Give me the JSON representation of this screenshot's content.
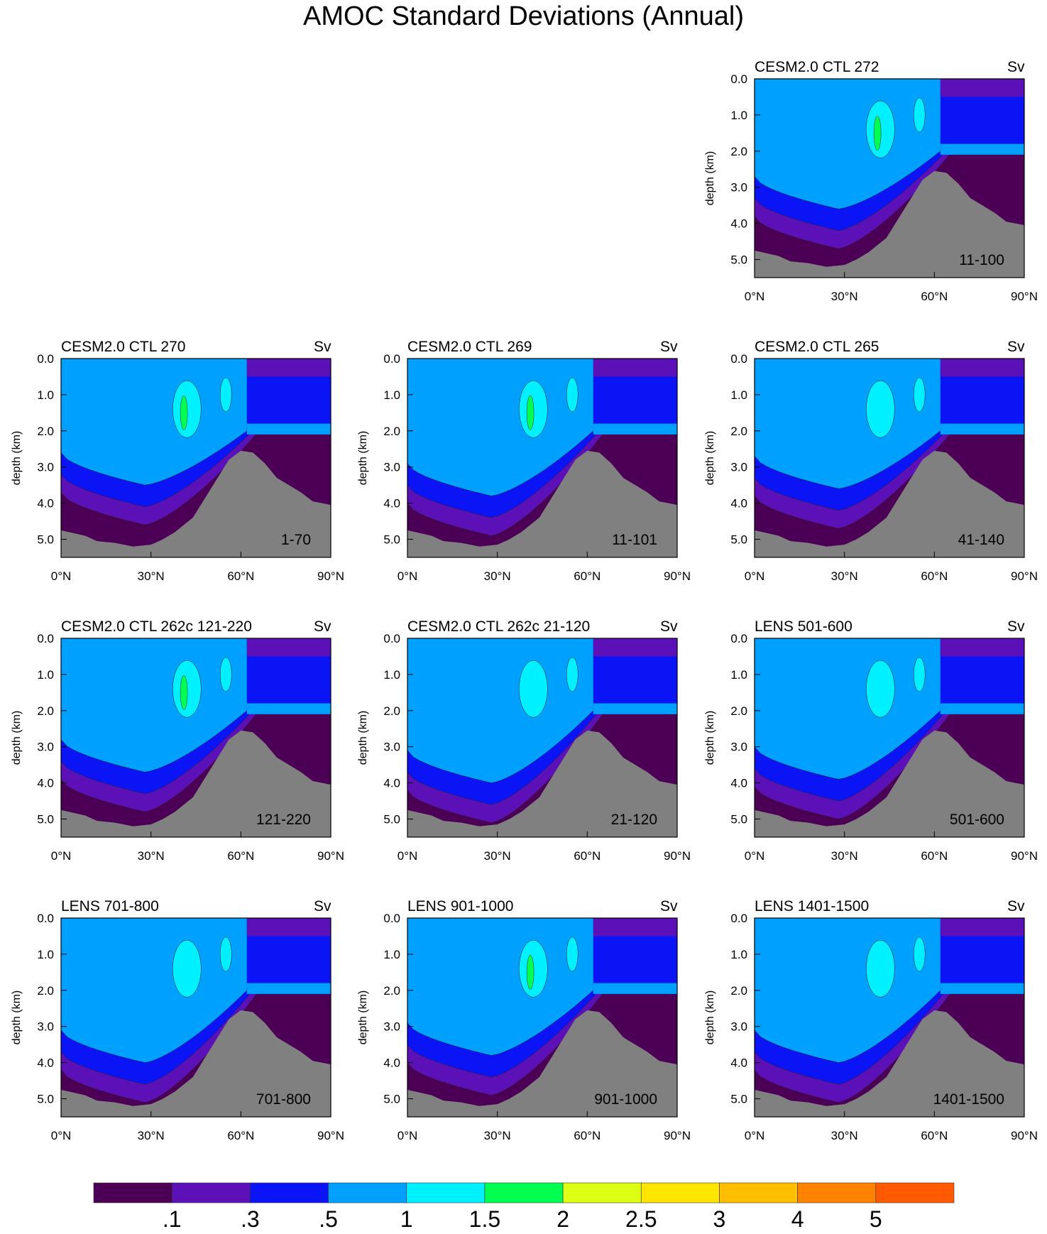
{
  "title": "AMOC Standard Deviations (Annual)",
  "colors": {
    "land": "#808080",
    "levels": [
      "#4b0055",
      "#5c10b8",
      "#0a14f5",
      "#00a0ff",
      "#00f0ff",
      "#00ff50",
      "#dcff14",
      "#ffe600",
      "#ffbe00",
      "#ff8200",
      "#ff5a00",
      "#ff0000"
    ]
  },
  "colorbar": {
    "labels": [
      ".1",
      ".3",
      ".5",
      "1",
      "1.5",
      "2",
      "2.5",
      "3",
      "4",
      "5"
    ]
  },
  "chart_data": {
    "type": "contour",
    "xlabel": "",
    "ylabel": "depth (km)",
    "units": "Sv",
    "xlim": [
      0,
      90
    ],
    "ylim": [
      5.5,
      0.0
    ],
    "xticks": [
      "0°N",
      "30°N",
      "60°N",
      "90°N"
    ],
    "yticks": [
      "0.0",
      "1.0",
      "2.0",
      "3.0",
      "4.0",
      "5.0"
    ],
    "contour_levels": [
      0.1,
      0.3,
      0.5,
      1,
      1.5,
      2,
      2.5,
      3,
      4,
      5
    ],
    "panels": [
      {
        "title": "CESM2.0 CTL 272",
        "units": "Sv",
        "years": "11-100",
        "core_depth_km": 3.6,
        "max_level": "1.5-2"
      },
      {
        "title": "CESM2.0 CTL 270",
        "units": "Sv",
        "years": "1-70",
        "core_depth_km": 3.5,
        "max_level": "1.5-2"
      },
      {
        "title": "CESM2.0 CTL 269",
        "units": "Sv",
        "years": "11-101",
        "core_depth_km": 3.8,
        "max_level": "1.5-2"
      },
      {
        "title": "CESM2.0 CTL 265",
        "units": "Sv",
        "years": "41-140",
        "core_depth_km": 3.6,
        "max_level": "1-1.5"
      },
      {
        "title": "CESM2.0 CTL 262c 121-220",
        "units": "Sv",
        "years": "121-220",
        "core_depth_km": 3.7,
        "max_level": "1.5-2"
      },
      {
        "title": "CESM2.0 CTL 262c 21-120",
        "units": "Sv",
        "years": "21-120",
        "core_depth_km": 4.0,
        "max_level": "1-1.5"
      },
      {
        "title": "LENS 501-600",
        "units": "Sv",
        "years": "501-600",
        "core_depth_km": 3.9,
        "max_level": "1-1.5"
      },
      {
        "title": "LENS 701-800",
        "units": "Sv",
        "years": "701-800",
        "core_depth_km": 4.0,
        "max_level": "1-1.5"
      },
      {
        "title": "LENS 901-1000",
        "units": "Sv",
        "years": "901-1000",
        "core_depth_km": 3.8,
        "max_level": "1.5-2"
      },
      {
        "title": "LENS 1401-1500",
        "units": "Sv",
        "years": "1401-1500",
        "core_depth_km": 4.0,
        "max_level": "1-1.5"
      }
    ]
  }
}
